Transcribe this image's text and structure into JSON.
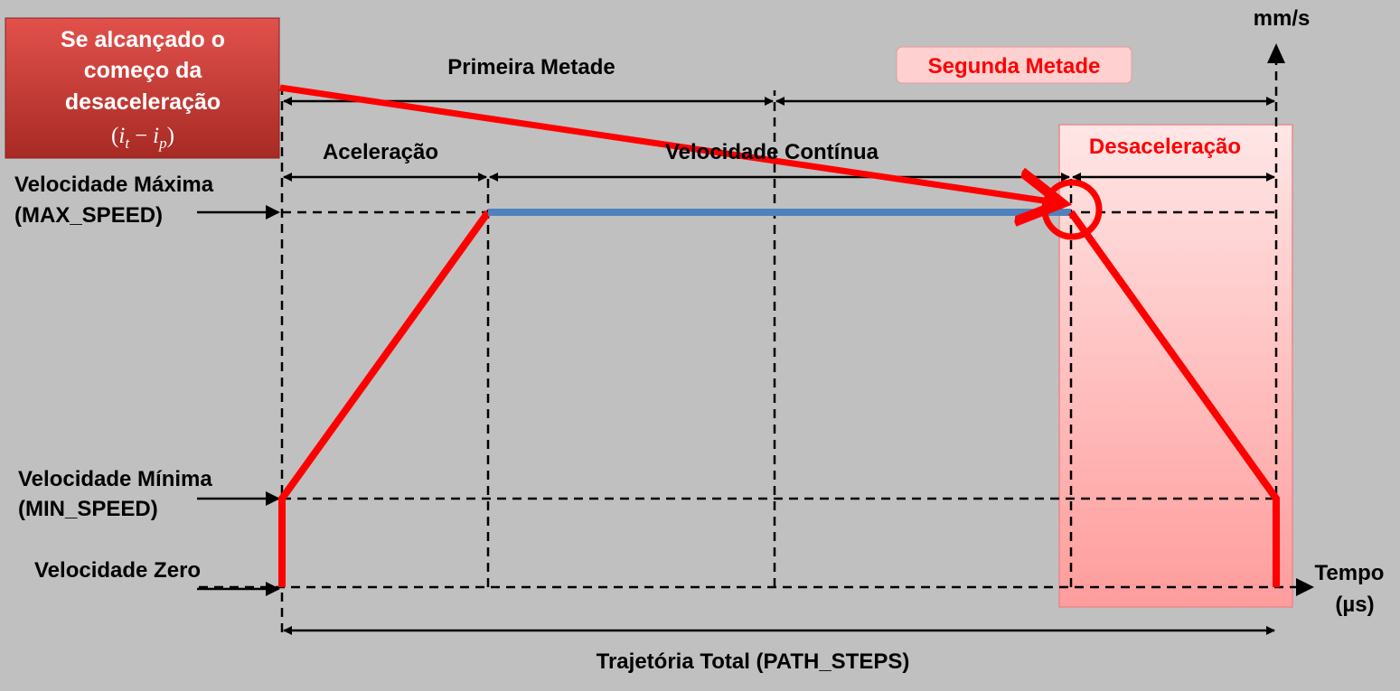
{
  "callout": {
    "lines": [
      "Se alcançado o",
      "começo da",
      "desaceleração"
    ],
    "formula": [
      "(",
      "i",
      "t",
      "−",
      "i",
      "p",
      ")"
    ]
  },
  "axes": {
    "y_unit": "mm/s",
    "x_label": "Tempo",
    "x_unit": "(µs)"
  },
  "halves": {
    "first": "Primeira Metade",
    "second": "Segunda Metade"
  },
  "phases": {
    "acceleration": "Aceleração",
    "constant": "Velocidade Contínua",
    "deceleration": "Desaceleração"
  },
  "levels": {
    "max": [
      "Velocidade Máxima",
      "(MAX_SPEED)"
    ],
    "min": [
      "Velocidade Mínima",
      "(MIN_SPEED)"
    ],
    "zero": "Velocidade Zero"
  },
  "total": "Trajetória Total (PATH_STEPS)"
}
